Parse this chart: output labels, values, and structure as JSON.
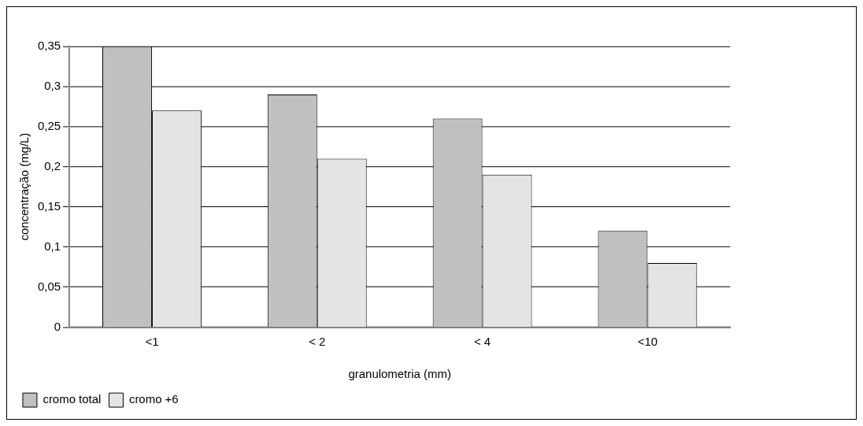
{
  "chart_data": {
    "type": "bar",
    "xlabel": "granulometria (mm)",
    "ylabel": "concentração (mg/L)",
    "categories": [
      "<1",
      "< 2",
      "< 4",
      "<10"
    ],
    "series": [
      {
        "name": "cromo total",
        "color": "#c0c0c0",
        "values": [
          0.35,
          0.29,
          0.26,
          0.12
        ]
      },
      {
        "name": "cromo +6",
        "color": "#e4e4e4",
        "values": [
          0.27,
          0.21,
          0.19,
          0.08
        ]
      }
    ],
    "ylim": [
      0,
      0.35
    ],
    "yticks": [
      {
        "value": 0,
        "label": "0"
      },
      {
        "value": 0.05,
        "label": "0,05"
      },
      {
        "value": 0.1,
        "label": "0,1"
      },
      {
        "value": 0.15,
        "label": "0,15"
      },
      {
        "value": 0.2,
        "label": "0,2"
      },
      {
        "value": 0.25,
        "label": "0,25"
      },
      {
        "value": 0.3,
        "label": "0,3"
      },
      {
        "value": 0.35,
        "label": "0,35"
      }
    ],
    "grid": "y",
    "legend": "bottom left"
  }
}
